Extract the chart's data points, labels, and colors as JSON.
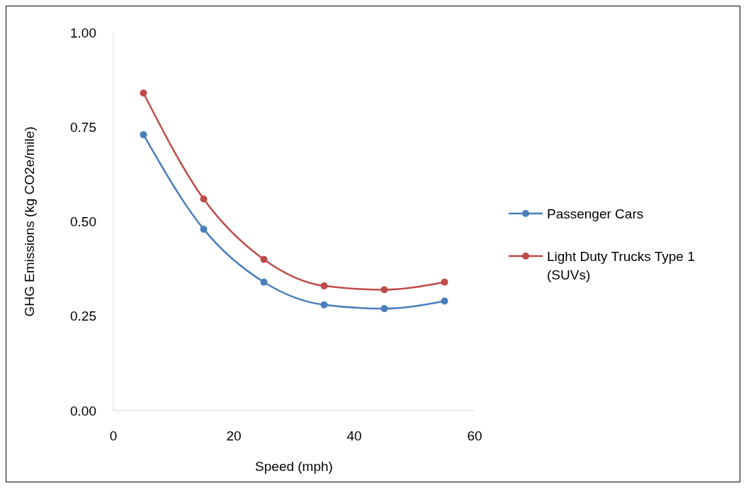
{
  "chart_data": {
    "type": "line",
    "xlabel": "Speed (mph)",
    "ylabel": "GHG Emissions (kg CO2e/mile)",
    "x": [
      5,
      15,
      25,
      35,
      45,
      55
    ],
    "series": [
      {
        "name": "Passenger Cars",
        "color": "#4a7ebb",
        "values": [
          0.73,
          0.48,
          0.34,
          0.28,
          0.27,
          0.29
        ]
      },
      {
        "name": "Light Duty Trucks Type 1 (SUVs)",
        "color": "#be4b48",
        "values": [
          0.84,
          0.56,
          0.4,
          0.33,
          0.32,
          0.34
        ]
      }
    ],
    "xlim": [
      0,
      60
    ],
    "xticks": [
      0,
      20,
      40,
      60
    ],
    "ylim": [
      0,
      1
    ],
    "yticks": [
      {
        "value": 0,
        "label": "0.00"
      },
      {
        "value": 0.25,
        "label": "0.25"
      },
      {
        "value": 0.5,
        "label": "0.50"
      },
      {
        "value": 0.75,
        "label": "0.75"
      },
      {
        "value": 1,
        "label": "1.00"
      }
    ],
    "grid": false,
    "legend": "right",
    "marker": "circle",
    "line_style": "solid"
  }
}
